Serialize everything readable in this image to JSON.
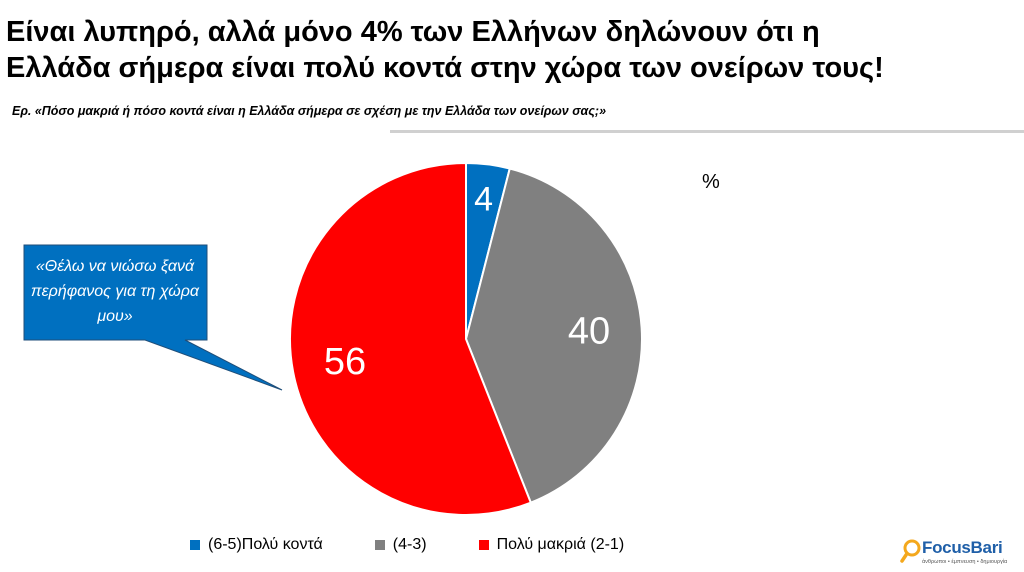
{
  "header": {
    "title_line1": "Είναι λυπηρό, αλλά μόνο 4% των Ελλήνων δηλώνουν ότι η",
    "title_line2": "Ελλάδα σήμερα είναι πολύ κοντά στην χώρα των ονείρων τους!",
    "question": "Ερ. «Πόσο μακριά ή πόσο κοντά είναι η Ελλάδα σήμερα σε σχέση με την Ελλάδα των ονείρων σας;»"
  },
  "callout": {
    "text": "«Θέλω να νιώσω ξανά περήφανος για τη χώρα μου»",
    "color": "#0070c0"
  },
  "logo": {
    "brand": "FocusBari",
    "tagline": "άνθρωποι • έμπνευση • δημιουργία"
  },
  "chart_data": {
    "type": "pie",
    "unit": "%",
    "categories": [
      "(6-5)Πολύ κοντά",
      "(4-3)",
      "Πολύ μακριά (2-1)"
    ],
    "values": [
      4,
      40,
      56
    ],
    "colors": [
      "#0070c0",
      "#808080",
      "#ff0000"
    ],
    "legend_position": "bottom",
    "start_angle": "12 o'clock, clockwise"
  }
}
